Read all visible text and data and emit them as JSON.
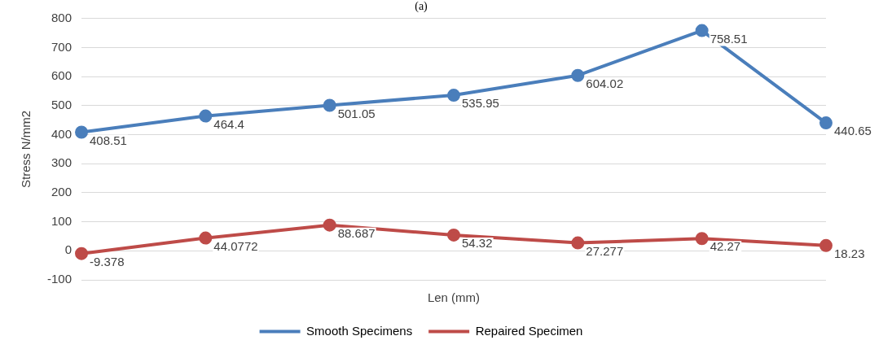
{
  "chart_data": {
    "type": "line",
    "title": "(a)",
    "xlabel": "Len (mm)",
    "ylabel": "Stress N/mm2",
    "categories": [
      null,
      null,
      null,
      null,
      null,
      null,
      null
    ],
    "series": [
      {
        "name": "Smooth Specimens",
        "color": "#4a7ebb",
        "values": [
          408.51,
          464.4,
          501.05,
          535.95,
          604.02,
          758.51,
          440.65
        ]
      },
      {
        "name": "Repaired Specimen",
        "color": "#be4b48",
        "values": [
          -9.378,
          44.0772,
          88.687,
          54.32,
          27.277,
          42.27,
          18.23
        ]
      }
    ],
    "ylim": [
      -100,
      800
    ],
    "yticks": [
      -100,
      0,
      100,
      200,
      300,
      400,
      500,
      600,
      700,
      800
    ],
    "grid": "y",
    "legend": "bottom",
    "marker": "circle",
    "line_style": "solid",
    "tick_labels": "y",
    "data_labels": true
  }
}
